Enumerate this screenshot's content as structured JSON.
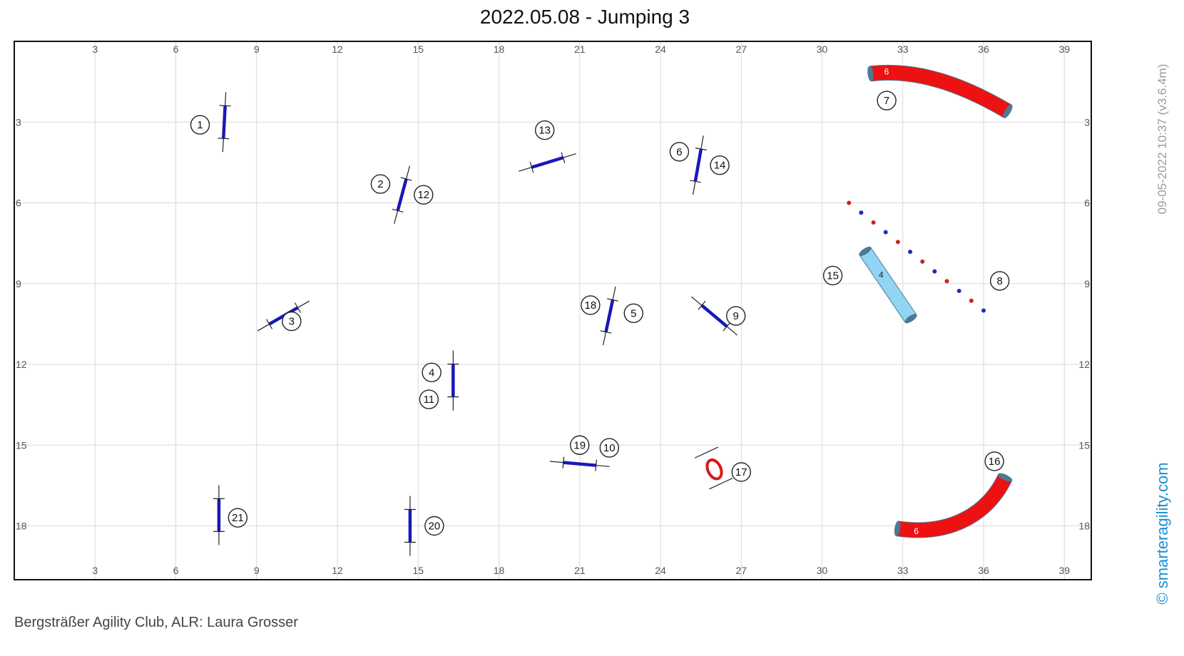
{
  "title": "2022.05.08 - Jumping 3",
  "footer": "Bergsträßer Agility Club, ALR: Laura Grosser",
  "timestamp": "09-05-2022 10:37 (v3.6.4m)",
  "copyright": "© smarteragility.com",
  "colors": {
    "grid": "#d9d9d9",
    "axis_text": "#555555",
    "jump_bar": "#1818b8",
    "tunnel_red": "#ee1111",
    "tunnel_end": "#4a7a96",
    "tunnel_blue": "#92d4f4",
    "weave_red": "#cc2222",
    "weave_blue": "#1b2ec4",
    "tyre": "#d81818",
    "copyright": "#1a8fd0"
  },
  "chart_data": {
    "type": "course-map",
    "units": "meters",
    "xlim": [
      0,
      40
    ],
    "ylim": [
      0,
      20
    ],
    "x_ticks": [
      3,
      6,
      9,
      12,
      15,
      18,
      21,
      24,
      27,
      30,
      33,
      36,
      39
    ],
    "y_ticks": [
      3,
      6,
      9,
      12,
      15,
      18
    ],
    "grid": true,
    "jumps": [
      {
        "x": 7.8,
        "y": 3.0,
        "angle": 93
      },
      {
        "x": 14.4,
        "y": 5.7,
        "angle": 105
      },
      {
        "x": 10.0,
        "y": 10.2,
        "angle": -30
      },
      {
        "x": 16.3,
        "y": 12.6,
        "angle": 90
      },
      {
        "x": 25.4,
        "y": 4.6,
        "angle": 100
      },
      {
        "x": 19.8,
        "y": 4.5,
        "angle": -17
      },
      {
        "x": 22.1,
        "y": 10.2,
        "angle": 102
      },
      {
        "x": 26.0,
        "y": 10.2,
        "angle": 40
      },
      {
        "x": 21.0,
        "y": 15.7,
        "angle": 5
      },
      {
        "x": 7.6,
        "y": 17.6,
        "angle": 90
      },
      {
        "x": 14.7,
        "y": 18.0,
        "angle": 90
      }
    ],
    "tunnels": [
      {
        "color": "red",
        "label": "6",
        "points": [
          [
            31.8,
            1.2
          ],
          [
            33.5,
            1.0
          ],
          [
            35.2,
            1.6
          ],
          [
            36.9,
            2.6
          ]
        ]
      },
      {
        "color": "red",
        "label": "6",
        "points": [
          [
            32.8,
            18.1
          ],
          [
            34.8,
            18.4
          ],
          [
            36.2,
            17.5
          ],
          [
            36.8,
            16.2
          ]
        ]
      },
      {
        "color": "blue",
        "label": "4",
        "points": [
          [
            31.6,
            7.8
          ],
          [
            33.3,
            10.3
          ]
        ]
      }
    ],
    "weaves": {
      "start": [
        31.0,
        6.0
      ],
      "end": [
        36.0,
        10.0
      ],
      "count": 12
    },
    "tyre": {
      "x": 26.0,
      "y": 15.9
    },
    "numbers": [
      {
        "n": "1",
        "x": 6.9,
        "y": 3.1
      },
      {
        "n": "2",
        "x": 13.6,
        "y": 5.3
      },
      {
        "n": "3",
        "x": 10.3,
        "y": 10.4
      },
      {
        "n": "4",
        "x": 15.5,
        "y": 12.3
      },
      {
        "n": "5",
        "x": 23.0,
        "y": 10.1
      },
      {
        "n": "6",
        "x": 24.7,
        "y": 4.1
      },
      {
        "n": "7",
        "x": 32.4,
        "y": 2.2
      },
      {
        "n": "8",
        "x": 36.6,
        "y": 8.9
      },
      {
        "n": "9",
        "x": 26.8,
        "y": 10.2
      },
      {
        "n": "10",
        "x": 22.1,
        "y": 15.1
      },
      {
        "n": "11",
        "x": 15.4,
        "y": 13.3
      },
      {
        "n": "12",
        "x": 15.2,
        "y": 5.7
      },
      {
        "n": "13",
        "x": 19.7,
        "y": 3.3
      },
      {
        "n": "14",
        "x": 26.2,
        "y": 4.6
      },
      {
        "n": "15",
        "x": 30.4,
        "y": 8.7
      },
      {
        "n": "16",
        "x": 36.4,
        "y": 15.6
      },
      {
        "n": "17",
        "x": 27.0,
        "y": 16.0
      },
      {
        "n": "18",
        "x": 21.4,
        "y": 9.8
      },
      {
        "n": "19",
        "x": 21.0,
        "y": 15.0
      },
      {
        "n": "20",
        "x": 15.6,
        "y": 18.0
      },
      {
        "n": "21",
        "x": 8.3,
        "y": 17.7
      }
    ]
  }
}
